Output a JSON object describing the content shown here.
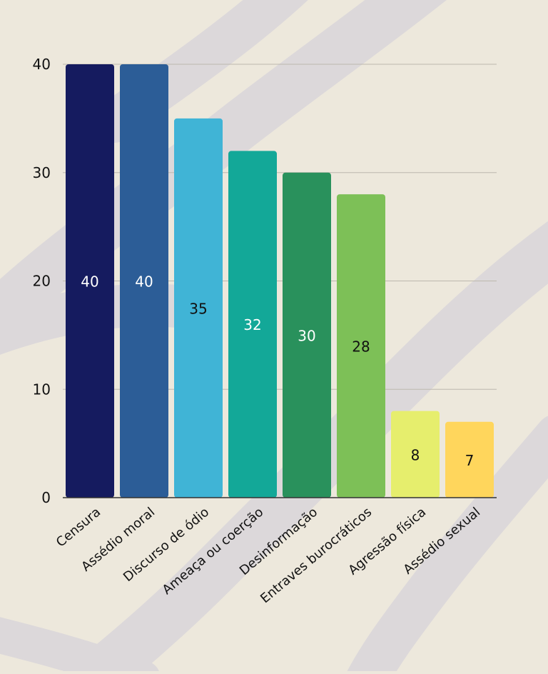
{
  "chart_data": {
    "type": "bar",
    "title": "",
    "xlabel": "",
    "ylabel": "",
    "ylim": [
      0,
      40
    ],
    "yticks": [
      0,
      10,
      20,
      30,
      40
    ],
    "grid": true,
    "categories": [
      "Censura",
      "Assédio moral",
      "Discurso de ódio",
      "Ameaça ou coerção",
      "Desinformação",
      "Entraves burocráticos",
      "Agressão física",
      "Assédio sexual"
    ],
    "values": [
      40,
      40,
      35,
      32,
      30,
      28,
      8,
      7
    ],
    "bar_colors": [
      "#151B5F",
      "#2C5D97",
      "#40B4D6",
      "#13A898",
      "#29915C",
      "#7DC057",
      "#E6EE6D",
      "#FFD65C"
    ],
    "label_colors": [
      "#FFFFFF",
      "#FFFFFF",
      "#111111",
      "#FFFFFF",
      "#FFFFFF",
      "#111111",
      "#111111",
      "#111111"
    ]
  }
}
